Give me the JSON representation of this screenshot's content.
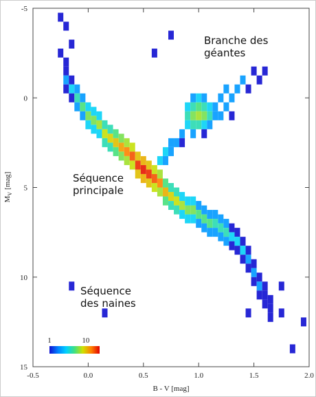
{
  "chart_data": {
    "type": "density",
    "x_label": "B - V [mag]",
    "y_label": {
      "main": "M",
      "sub": "V",
      "unit": "[mag]"
    },
    "annotations": [
      [
        "Branche des",
        "géantes"
      ],
      [
        "Séquence",
        "principale"
      ],
      [
        "Séquence",
        "des naines"
      ]
    ],
    "xlim": [
      -0.5,
      2.0
    ],
    "xticks": [
      -0.5,
      {
        "value": 0,
        "label": "0.0"
      },
      0.5,
      {
        "value": 1,
        "label": "1.0"
      },
      1.5,
      {
        "value": 2,
        "label": "2.0"
      }
    ],
    "ylim": [
      15,
      -5
    ],
    "yticks": [
      -5,
      0,
      5,
      10,
      15
    ],
    "colorbar": {
      "lim": [
        1,
        24
      ],
      "ticks": [
        1,
        10
      ],
      "log": true
    },
    "colormap": [
      "#1010d0",
      "#0080ff",
      "#00d0ff",
      "#40e080",
      "#d0e000",
      "#ff8000",
      "#e00000"
    ],
    "x": [
      -0.2,
      -0.2,
      -0.2,
      -0.15,
      -0.15,
      -0.15,
      -0.1,
      -0.1,
      -0.1,
      -0.05,
      -0.05,
      -0.05,
      0,
      0,
      0,
      0.05,
      0.05,
      0.05,
      0.1,
      0.1,
      0.1,
      0.15,
      0.15,
      0.15,
      0.2,
      0.2,
      0.2,
      0.25,
      0.25,
      0.25,
      0.3,
      0.3,
      0.3,
      0.35,
      0.35,
      0.35,
      0.4,
      0.4,
      0.4,
      0.45,
      0.45,
      0.45,
      0.5,
      0.5,
      0.5,
      0.55,
      0.55,
      0.55,
      0.6,
      0.6,
      0.6,
      0.65,
      0.65,
      0.65,
      0.7,
      0.7,
      0.7,
      0.75,
      0.75,
      0.75,
      0.8,
      0.8,
      0.8,
      0.85,
      0.85,
      0.85,
      0.9,
      0.9,
      0.9,
      0.95,
      0.95,
      0.95,
      1,
      1,
      1,
      1.05,
      1.05,
      1.05,
      1.1,
      1.1,
      1.1,
      1.15,
      1.15,
      1.15,
      1.2,
      1.2,
      1.2,
      1.25,
      1.25,
      1.25,
      1.3,
      1.3,
      1.3,
      1.35,
      1.35,
      1.35,
      1.4,
      1.4,
      1.4,
      1.45,
      1.45,
      1.45,
      1.5,
      1.5,
      1.5,
      1.55,
      1.55,
      1.55,
      1.6,
      1.6,
      1.6,
      1.65,
      1.65,
      1.65,
      0.9,
      0.95,
      1,
      1.05,
      1.1,
      1.15,
      0.9,
      0.95,
      1,
      1.05,
      1.1,
      1.15,
      0.9,
      0.95,
      1,
      1.05,
      1.1,
      0.95,
      1,
      1.05,
      0.85,
      0.95,
      1.05,
      0.65,
      0.7,
      0.75,
      0.75,
      0.8,
      0.85,
      0.7,
      1.2,
      1.25,
      1.3,
      1.35,
      1.4,
      1.45,
      1.5,
      1.55,
      1.6,
      1.2,
      1.3,
      1.25,
      -0.25,
      -0.2,
      -0.15,
      -0.2,
      -0.25,
      0.75,
      0.6,
      0.15,
      -0.15,
      1.75,
      1.85,
      1.75,
      1.95,
      1.45
    ],
    "y": [
      -1.5,
      -1,
      -0.5,
      -1,
      -0.5,
      0,
      -0.5,
      0,
      0.5,
      0,
      0.5,
      1,
      0.5,
      1,
      1.5,
      0.75,
      1.25,
      1.75,
      1,
      1.5,
      2,
      1.5,
      2,
      2.5,
      1.75,
      2.25,
      2.75,
      2,
      2.5,
      3,
      2.25,
      2.75,
      3.25,
      2.5,
      3,
      3.5,
      2.75,
      3.25,
      3.75,
      3.25,
      3.75,
      4.25,
      3.5,
      4,
      4.5,
      3.75,
      4.25,
      4.75,
      4,
      4.5,
      5,
      4.25,
      4.75,
      5.25,
      4.75,
      5.25,
      5.75,
      5,
      5.5,
      6,
      5.25,
      5.75,
      6.25,
      5.5,
      6,
      6.5,
      5.75,
      6.25,
      6.75,
      5.75,
      6.25,
      6.75,
      6,
      6.5,
      7,
      6.25,
      6.75,
      7.25,
      6.5,
      7,
      7.5,
      6.5,
      7,
      7.5,
      6.75,
      7.25,
      7.75,
      7,
      7.5,
      8,
      7.25,
      7.75,
      8.25,
      7.5,
      8,
      8.5,
      8,
      8.5,
      9,
      8.5,
      9,
      9.5,
      9.25,
      9.75,
      10.25,
      10,
      10.5,
      11,
      10.5,
      11,
      11.5,
      11.25,
      11.75,
      12.25,
      0.5,
      0.5,
      0.5,
      0.5,
      0.5,
      0.5,
      1,
      1,
      1,
      1,
      1,
      1,
      1.5,
      1.5,
      1.5,
      1.5,
      1.5,
      0,
      0,
      0,
      2,
      2,
      2,
      3.5,
      3,
      3,
      2.5,
      2.5,
      2.5,
      3.5,
      0,
      -0.5,
      0,
      -0.5,
      -1,
      -0.5,
      -1.5,
      -1,
      -1.5,
      1,
      1,
      0.5,
      -2.5,
      -2,
      -3,
      -4,
      -4.5,
      -3.5,
      -2.5,
      12,
      10.5,
      12,
      14,
      10.5,
      12.5,
      12
    ],
    "counts": [
      1,
      2,
      1,
      1,
      3,
      1,
      2,
      4,
      2,
      2,
      5,
      2,
      3,
      6,
      3,
      3,
      6,
      3,
      3,
      7,
      3,
      4,
      8,
      4,
      4,
      9,
      4,
      5,
      10,
      5,
      6,
      12,
      6,
      7,
      14,
      7,
      8,
      17,
      8,
      10,
      20,
      10,
      11,
      22,
      11,
      10,
      20,
      10,
      8,
      17,
      8,
      7,
      14,
      7,
      5,
      11,
      5,
      4,
      9,
      4,
      4,
      8,
      4,
      3,
      7,
      3,
      3,
      6,
      3,
      3,
      6,
      3,
      2,
      5,
      2,
      2,
      5,
      2,
      2,
      5,
      2,
      2,
      4,
      2,
      2,
      4,
      2,
      2,
      4,
      2,
      1,
      3,
      1,
      1,
      3,
      1,
      1,
      3,
      1,
      1,
      2,
      1,
      1,
      2,
      1,
      1,
      2,
      1,
      1,
      1,
      1,
      1,
      1,
      1,
      3,
      4,
      5,
      4,
      3,
      2,
      4,
      6,
      7,
      6,
      4,
      2,
      3,
      4,
      4,
      3,
      2,
      2,
      3,
      2,
      2,
      2,
      1,
      3,
      3,
      2,
      2,
      2,
      1,
      2,
      2,
      2,
      2,
      2,
      2,
      1,
      1,
      1,
      1,
      2,
      1,
      2,
      1,
      1,
      1,
      1,
      1,
      1,
      1,
      1,
      1,
      1,
      1,
      1,
      1,
      1
    ]
  }
}
